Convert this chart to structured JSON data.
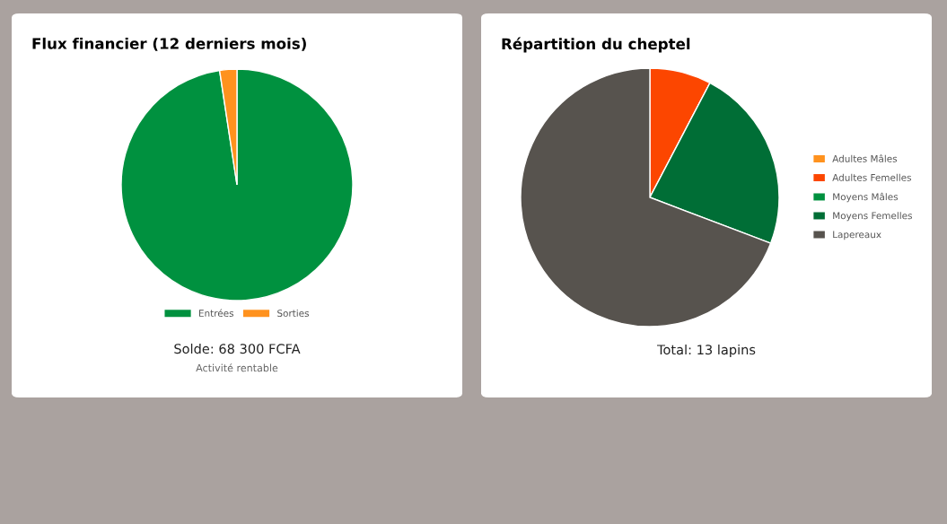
{
  "chart_data": [
    {
      "type": "pie",
      "title": "Flux financier (12 derniers mois)",
      "categories": [
        "Entrées",
        "Sorties"
      ],
      "values": [
        97.6,
        2.4
      ],
      "colors": [
        "#00913f",
        "#ff921e"
      ],
      "legend": "bottom",
      "annotations": [
        "Solde: 68 300 FCFA",
        "Activité rentable"
      ]
    },
    {
      "type": "pie",
      "title": "Répartition du cheptel",
      "categories": [
        "Adultes Mâles",
        "Adultes Femelles",
        "Moyens Mâles",
        "Moyens Femelles",
        "Lapereaux"
      ],
      "values": [
        0,
        7.69,
        0,
        23.08,
        69.23
      ],
      "colors": [
        "#ff921e",
        "#fc4600",
        "#00913f",
        "#006e36",
        "#57534e"
      ],
      "legend": "right",
      "annotations": [
        "Total: 13 lapins"
      ]
    }
  ]
}
